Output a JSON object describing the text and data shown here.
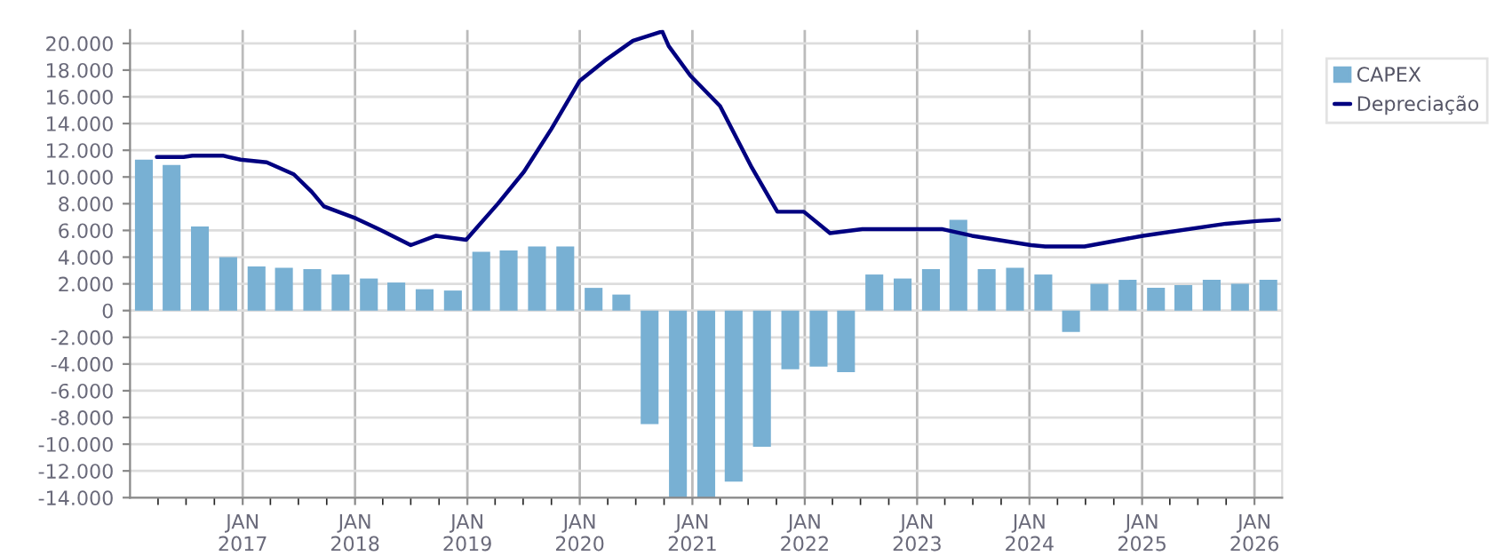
{
  "chart_data": {
    "type": "bar",
    "x": [
      "2016-02-15",
      "2016-05-15",
      "2016-08-15",
      "2016-11-15",
      "2017-02-15",
      "2017-05-15",
      "2017-08-15",
      "2017-11-15",
      "2018-02-15",
      "2018-05-15",
      "2018-08-15",
      "2018-11-15",
      "2019-02-15",
      "2019-05-15",
      "2019-08-15",
      "2019-11-15",
      "2020-02-15",
      "2020-05-15",
      "2020-08-15",
      "2020-11-15",
      "2021-02-15",
      "2021-05-15",
      "2021-08-15",
      "2021-11-15",
      "2022-02-15",
      "2022-05-15",
      "2022-08-15",
      "2022-11-15",
      "2023-02-15",
      "2023-05-15",
      "2023-08-15",
      "2023-11-15",
      "2024-02-15",
      "2024-05-15",
      "2024-08-15",
      "2024-11-15",
      "2025-02-15",
      "2025-05-15",
      "2025-08-15",
      "2025-11-15",
      "2026-02-15"
    ],
    "series": [
      {
        "name": "CAPEX",
        "color": "#78b0d3",
        "values": [
          11300,
          10900,
          6300,
          4000,
          3300,
          3200,
          3100,
          2700,
          2400,
          2100,
          1600,
          1500,
          4400,
          4500,
          4800,
          4800,
          1700,
          1200,
          -8500,
          -14000,
          -14000,
          -12800,
          -10200,
          -4400,
          -4200,
          -4600,
          2700,
          2400,
          3100,
          6800,
          3100,
          3200,
          2700,
          -1600,
          2000,
          2300,
          1700,
          1900,
          2300,
          2000,
          2300
        ]
      },
      {
        "name": "Depreciação",
        "type": "line",
        "color": "#000080",
        "x": [
          "2016-03-28",
          "2016-06-23",
          "2016-07-22",
          "2016-10-28",
          "2016-12-25",
          "2017-03-20",
          "2017-06-16",
          "2017-08-13",
          "2017-09-22",
          "2018-01-04",
          "2018-03-28",
          "2018-07-01",
          "2018-09-21",
          "2018-12-28",
          "2019-04-10",
          "2019-07-04",
          "2019-10-01",
          "2020-01-01",
          "2020-03-22",
          "2020-06-22",
          "2020-09-25",
          "2020-10-16",
          "2020-12-25",
          "2021-04-01",
          "2021-07-13",
          "2021-10-04",
          "2021-12-29",
          "2022-03-24",
          "2022-07-07",
          "2023-03-22",
          "2023-06-28",
          "2024-01-06",
          "2024-02-21",
          "2024-06-28",
          "2025-01-04",
          "2025-09-30",
          "2026-01-09",
          "2026-03-22"
        ],
        "values": [
          11500,
          11500,
          11600,
          11600,
          11300,
          11100,
          10200,
          8900,
          7800,
          6900,
          6000,
          4900,
          5600,
          5300,
          8000,
          10400,
          13600,
          17200,
          18700,
          20200,
          20900,
          19800,
          17600,
          15300,
          10700,
          7400,
          7400,
          5800,
          6100,
          6100,
          5600,
          4900,
          4800,
          4800,
          5600,
          6500,
          6700,
          6800
        ]
      }
    ],
    "xlim": [
      "2016-01-01",
      "2026-04-01"
    ],
    "xticks": [
      {
        "value": "2016-04-01",
        "label": null
      },
      {
        "value": "2016-07-01",
        "label": null
      },
      {
        "value": "2016-10-01",
        "label": null
      },
      {
        "value": "2017-01-01",
        "label": "JAN\n2017"
      },
      {
        "value": "2017-04-01",
        "label": null
      },
      {
        "value": "2017-07-01",
        "label": null
      },
      {
        "value": "2017-10-01",
        "label": null
      },
      {
        "value": "2018-01-01",
        "label": "JAN\n2018"
      },
      {
        "value": "2018-04-01",
        "label": null
      },
      {
        "value": "2018-07-01",
        "label": null
      },
      {
        "value": "2018-10-01",
        "label": null
      },
      {
        "value": "2019-01-01",
        "label": "JAN\n2019"
      },
      {
        "value": "2019-04-01",
        "label": null
      },
      {
        "value": "2019-07-01",
        "label": null
      },
      {
        "value": "2019-10-01",
        "label": null
      },
      {
        "value": "2020-01-01",
        "label": "JAN\n2020"
      },
      {
        "value": "2020-04-01",
        "label": null
      },
      {
        "value": "2020-07-01",
        "label": null
      },
      {
        "value": "2020-10-01",
        "label": null
      },
      {
        "value": "2021-01-01",
        "label": "JAN\n2021"
      },
      {
        "value": "2021-04-01",
        "label": null
      },
      {
        "value": "2021-07-01",
        "label": null
      },
      {
        "value": "2021-10-01",
        "label": null
      },
      {
        "value": "2022-01-01",
        "label": "JAN\n2022"
      },
      {
        "value": "2022-04-01",
        "label": null
      },
      {
        "value": "2022-07-01",
        "label": null
      },
      {
        "value": "2022-10-01",
        "label": null
      },
      {
        "value": "2023-01-01",
        "label": "JAN\n2023"
      },
      {
        "value": "2023-04-01",
        "label": null
      },
      {
        "value": "2023-07-01",
        "label": null
      },
      {
        "value": "2023-10-01",
        "label": null
      },
      {
        "value": "2024-01-01",
        "label": "JAN\n2024"
      },
      {
        "value": "2024-04-01",
        "label": null
      },
      {
        "value": "2024-07-01",
        "label": null
      },
      {
        "value": "2024-10-01",
        "label": null
      },
      {
        "value": "2025-01-01",
        "label": "JAN\n2025"
      },
      {
        "value": "2025-04-01",
        "label": null
      },
      {
        "value": "2025-07-01",
        "label": null
      },
      {
        "value": "2025-10-01",
        "label": null
      },
      {
        "value": "2026-01-01",
        "label": "JAN\n2026"
      }
    ],
    "ylim": [
      -14000,
      21000
    ],
    "yticks": [
      {
        "value": -14000,
        "label": "-14.000"
      },
      {
        "value": -12000,
        "label": "-12.000"
      },
      {
        "value": -10000,
        "label": "-10.000"
      },
      {
        "value": -8000,
        "label": "-8.000"
      },
      {
        "value": -6000,
        "label": "-6.000"
      },
      {
        "value": -4000,
        "label": "-4.000"
      },
      {
        "value": -2000,
        "label": "-2.000"
      },
      {
        "value": 0,
        "label": "0"
      },
      {
        "value": 2000,
        "label": "2.000"
      },
      {
        "value": 4000,
        "label": "4.000"
      },
      {
        "value": 6000,
        "label": "6.000"
      },
      {
        "value": 8000,
        "label": "8.000"
      },
      {
        "value": 10000,
        "label": "10.000"
      },
      {
        "value": 12000,
        "label": "12.000"
      },
      {
        "value": 14000,
        "label": "14.000"
      },
      {
        "value": 16000,
        "label": "16.000"
      },
      {
        "value": 18000,
        "label": "18.000"
      },
      {
        "value": 20000,
        "label": "20.000"
      }
    ],
    "grid": true,
    "legend": "top right"
  }
}
